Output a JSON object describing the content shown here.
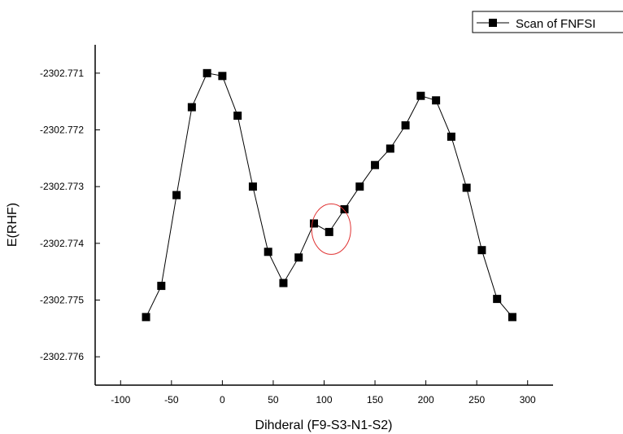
{
  "chart_data": {
    "type": "line",
    "xlabel": "Dihderal (F9-S3-N1-S2)",
    "ylabel": "E(RHF)",
    "xlim": [
      -125,
      325
    ],
    "ylim": [
      -2302.7765,
      -2302.7705
    ],
    "xticks": [
      -100,
      -50,
      0,
      50,
      100,
      150,
      200,
      250,
      300
    ],
    "yticks": [
      -2302.771,
      -2302.772,
      -2302.773,
      -2302.774,
      -2302.775,
      -2302.776
    ],
    "xtick_labels": [
      "-100",
      "-50",
      "0",
      "50",
      "100",
      "150",
      "200",
      "250",
      "300"
    ],
    "ytick_labels": [
      "-2302.771",
      "-2302.772",
      "-2302.773",
      "-2302.774",
      "-2302.775",
      "-2302.776"
    ],
    "grid": false,
    "legend_position": "top-right",
    "series": [
      {
        "name": "Scan of FNFSI",
        "color": "#000000",
        "marker": "square",
        "x": [
          -75,
          -60,
          -45,
          -30,
          -15,
          0,
          15,
          30,
          45,
          60,
          75,
          90,
          105,
          120,
          135,
          150,
          165,
          180,
          195,
          210,
          225,
          240,
          255,
          270,
          285
        ],
        "y": [
          -2302.7753,
          -2302.77475,
          -2302.77315,
          -2302.7716,
          -2302.771,
          -2302.77105,
          -2302.77175,
          -2302.773,
          -2302.77415,
          -2302.7747,
          -2302.77425,
          -2302.77365,
          -2302.7738,
          -2302.7734,
          -2302.773,
          -2302.77262,
          -2302.77233,
          -2302.77192,
          -2302.7714,
          -2302.77148,
          -2302.77212,
          -2302.77302,
          -2302.77412,
          -2302.77498,
          -2302.7753
        ]
      }
    ],
    "annotation": {
      "shape": "ellipse",
      "color": "#e03030",
      "center_x": 107,
      "center_y": -2302.77375
    }
  }
}
